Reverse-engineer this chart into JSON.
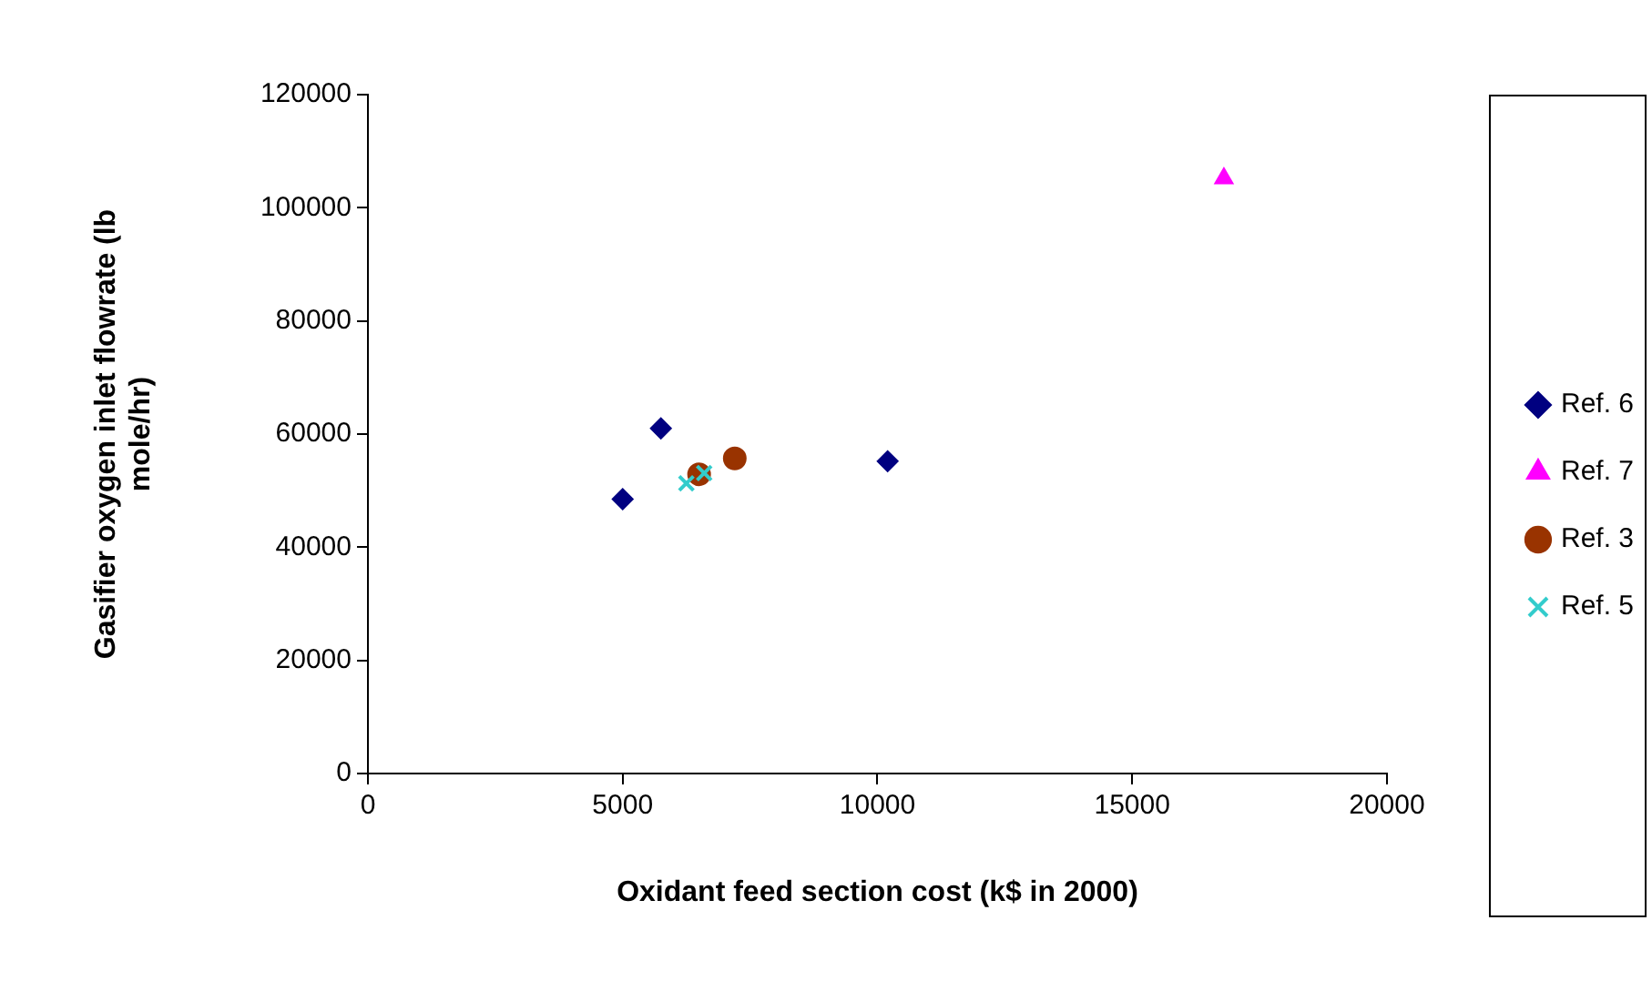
{
  "chart_data": {
    "type": "scatter",
    "xlabel": "Oxidant feed section cost (k$ in 2000)",
    "ylabel": "Gasifier oxygen inlet flowrate (lb mole/hr)",
    "xlim": [
      0,
      20000
    ],
    "xticks": [
      0,
      5000,
      10000,
      15000,
      20000
    ],
    "ylim": [
      0,
      120000
    ],
    "yticks": [
      0,
      20000,
      40000,
      60000,
      80000,
      100000,
      120000
    ],
    "grid": false,
    "legend": "right",
    "series": [
      {
        "name": "Ref. 6",
        "color": "#000080",
        "marker": "diamond",
        "x": [
          5000,
          5750,
          10200
        ],
        "values": [
          48500,
          61000,
          55200
        ]
      },
      {
        "name": "Ref. 7",
        "color": "#ff00ff",
        "marker": "triangle",
        "x": [
          16800
        ],
        "values": [
          105200
        ]
      },
      {
        "name": "Ref. 3",
        "color": "#993300",
        "marker": "circle",
        "x": [
          6500,
          7200
        ],
        "values": [
          52900,
          55700
        ]
      },
      {
        "name": "Ref. 5",
        "color": "#33cccc",
        "marker": "cross",
        "x": [
          6250,
          6600
        ],
        "values": [
          51300,
          53100
        ]
      }
    ]
  }
}
